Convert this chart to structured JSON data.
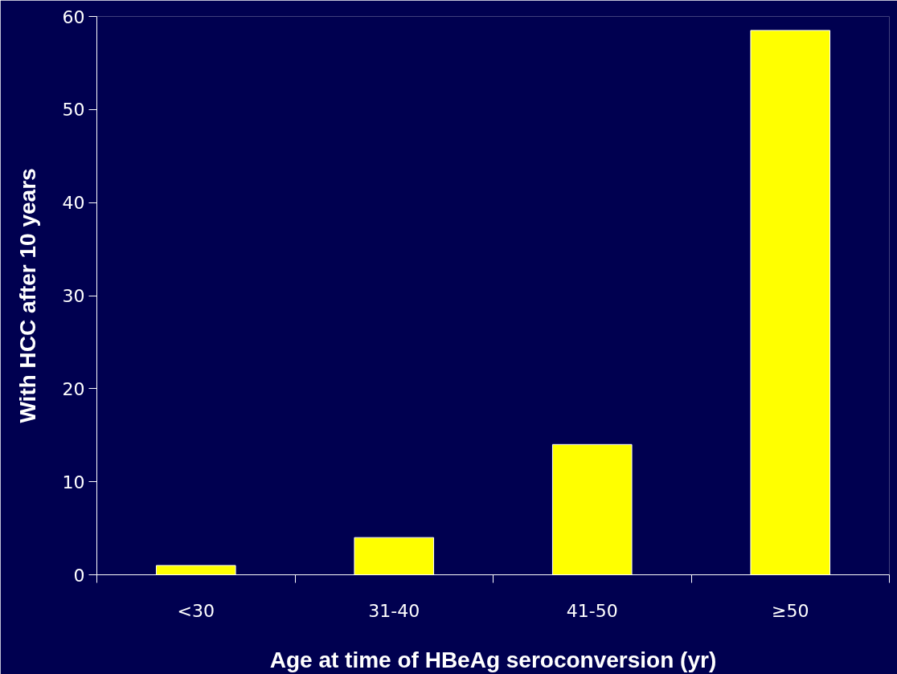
{
  "chart_data": {
    "type": "bar",
    "xlabel": "Age at time of HBeAg seroconversion (yr)",
    "ylabel": "With HCC after 10 years",
    "categories": [
      "<30",
      "31-40",
      "41-50",
      "≥50"
    ],
    "values": [
      1,
      4,
      14,
      58.5
    ],
    "color": "#ffff00",
    "ylim": [
      0,
      60
    ],
    "yticks": [
      0,
      10,
      20,
      30,
      40,
      50,
      60
    ],
    "grid": false
  }
}
